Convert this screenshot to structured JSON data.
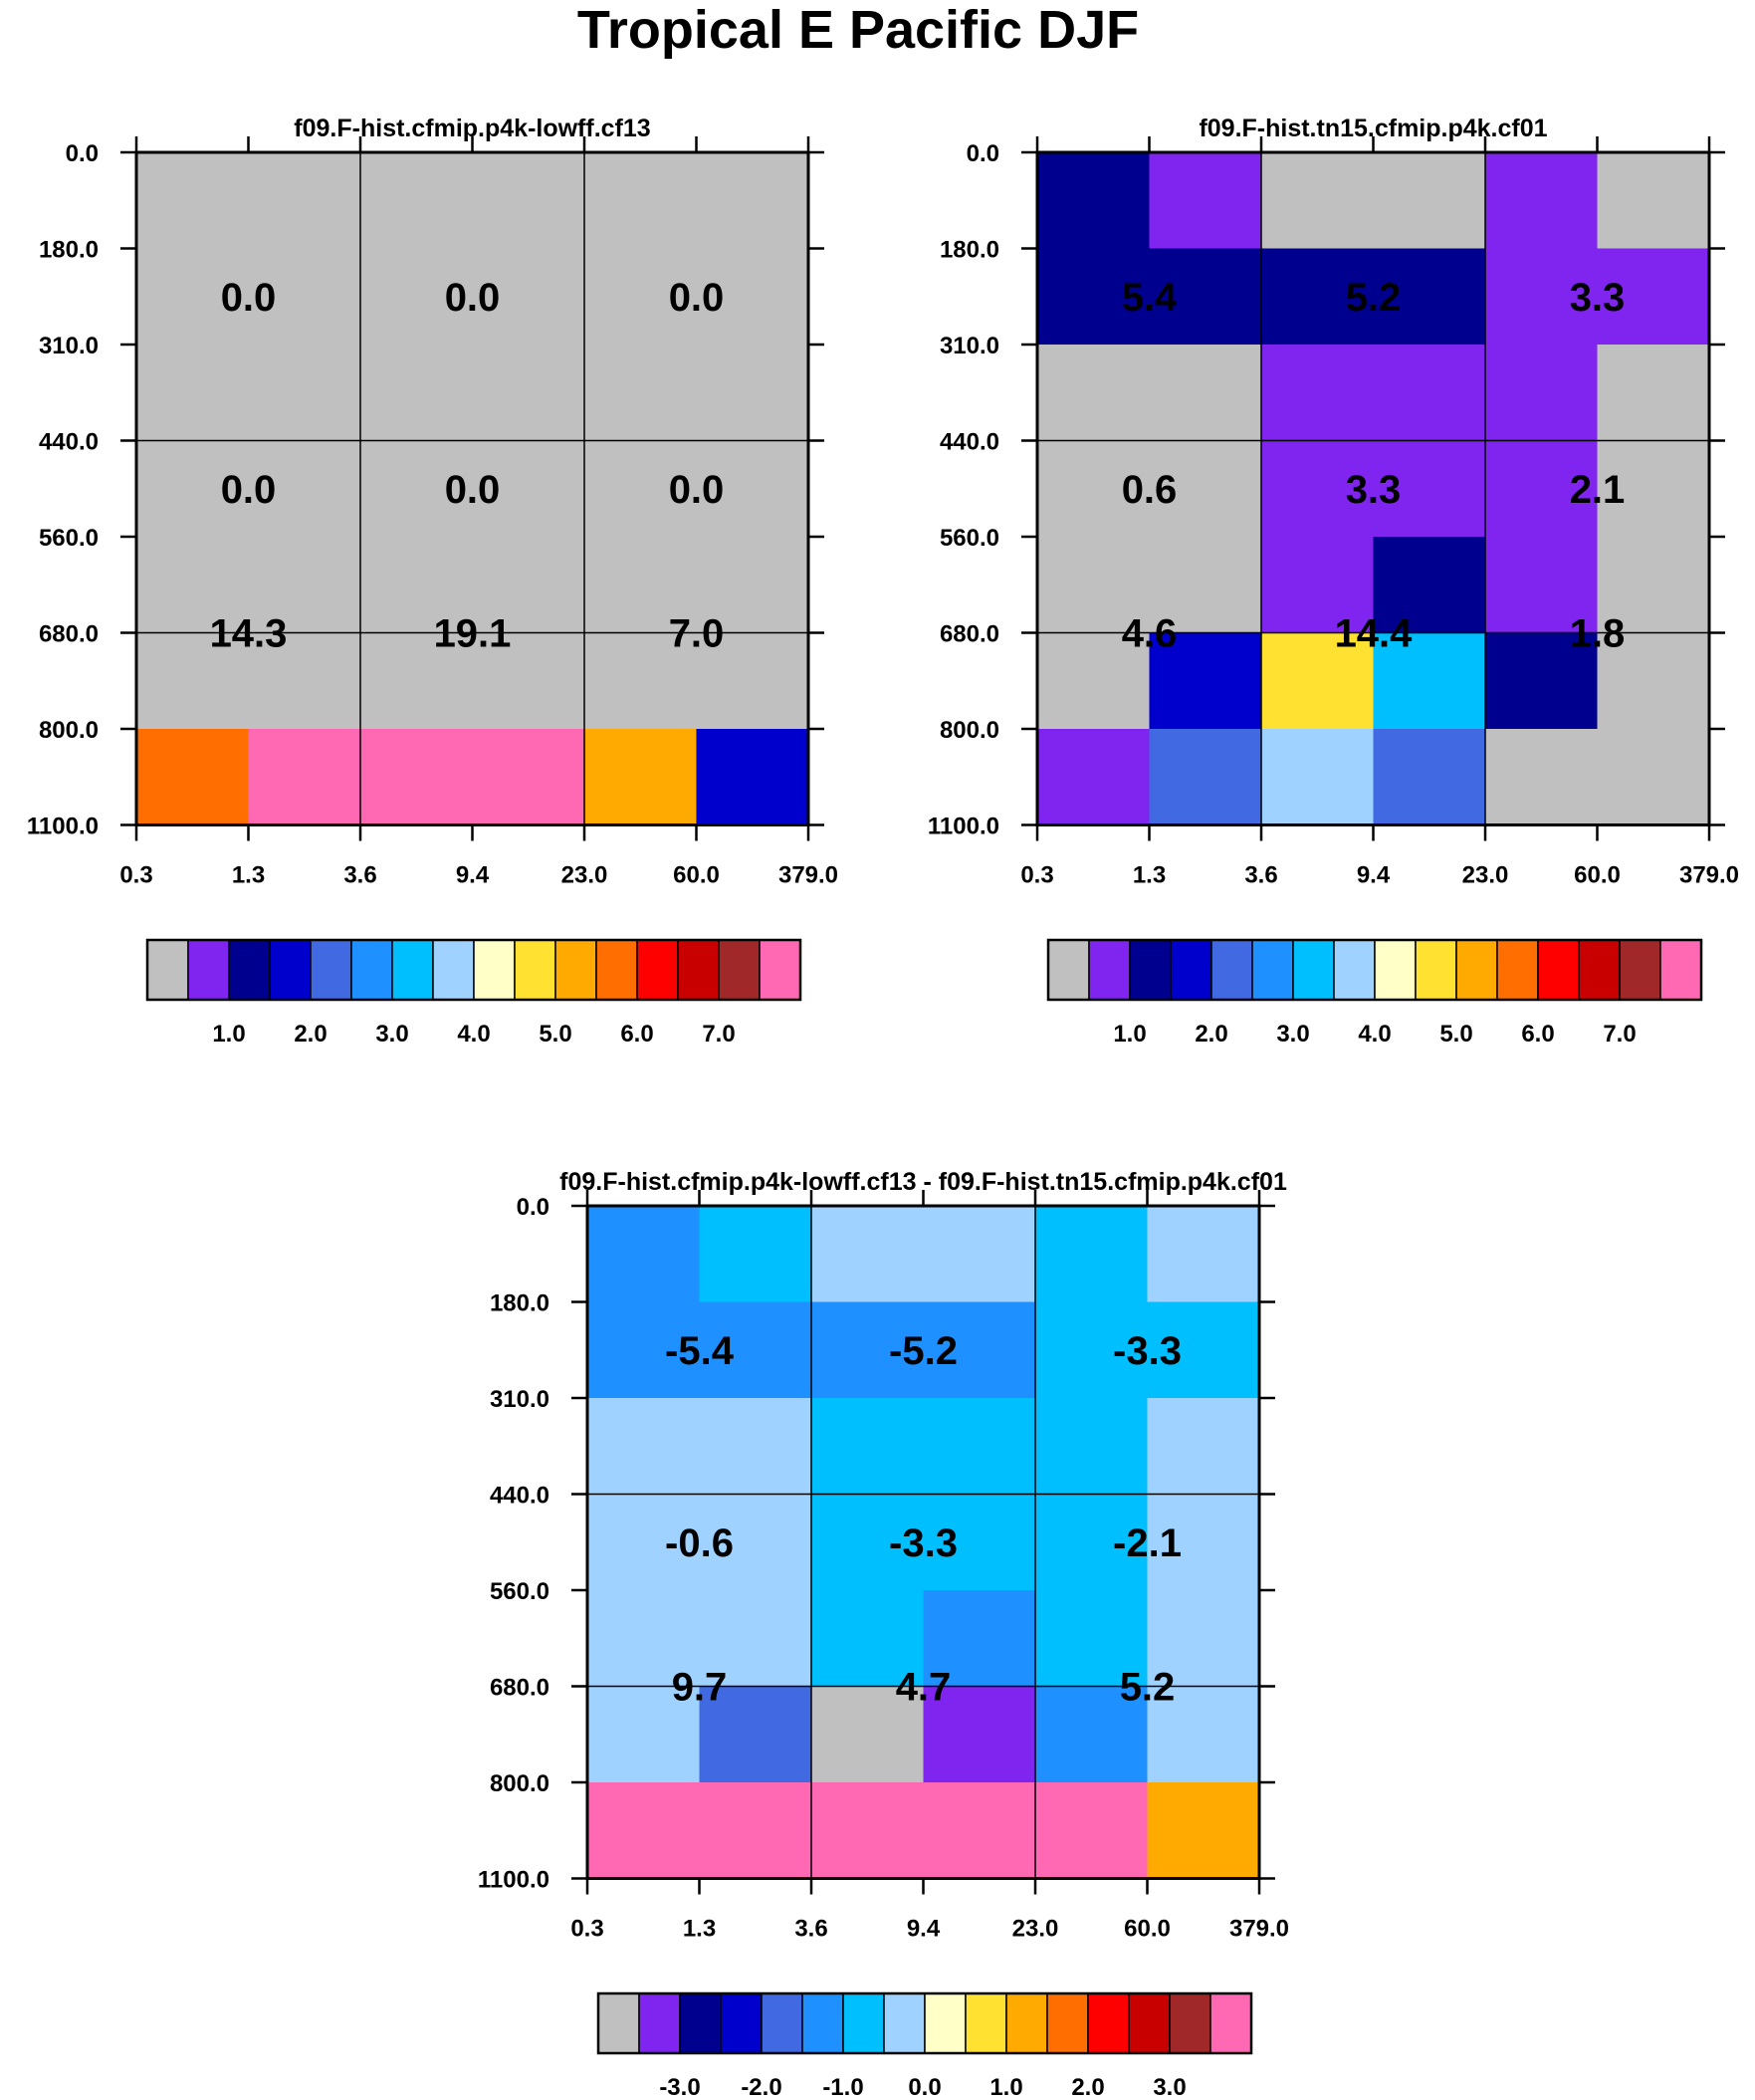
{
  "figure_title": "Tropical E Pacific DJF",
  "chart_data": [
    {
      "type": "heatmap",
      "title": "f09.F-hist.cfmip.p4k-lowff.cf13",
      "x_ticks": [
        "0.3",
        "1.3",
        "3.6",
        "9.4",
        "23.0",
        "60.0",
        "379.0"
      ],
      "y_ticks": [
        "0.0",
        "180.0",
        "310.0",
        "440.0",
        "560.0",
        "680.0",
        "800.0",
        "1100.0"
      ],
      "cells": [
        [
          0,
          0,
          0,
          0,
          0,
          0
        ],
        [
          0,
          0,
          0,
          0,
          0,
          0
        ],
        [
          0,
          0,
          0,
          0,
          0,
          0
        ],
        [
          0,
          0,
          0,
          0,
          0,
          0
        ],
        [
          0,
          0,
          0,
          0,
          0,
          0
        ],
        [
          0,
          0,
          0,
          0,
          0,
          0
        ],
        [
          11,
          15,
          15,
          15,
          10,
          3
        ]
      ],
      "group_labels": [
        [
          "0.0",
          "0.0",
          "0.0"
        ],
        [
          "0.0",
          "0.0",
          "0.0"
        ],
        [
          "14.3",
          "19.1",
          "7.0"
        ]
      ],
      "colorbar": {
        "colors": [
          "#c0c0c0",
          "#8024f0",
          "#00008e",
          "#0000cd",
          "#4169e1",
          "#1e90ff",
          "#00bfff",
          "#a0d2ff",
          "#ffffc8",
          "#ffe132",
          "#ffaa00",
          "#ff6e00",
          "#ff0000",
          "#c80000",
          "#a02828",
          "#ff69b4"
        ],
        "tick_labels": [
          "1.0",
          "2.0",
          "3.0",
          "4.0",
          "5.0",
          "6.0",
          "7.0"
        ]
      }
    },
    {
      "type": "heatmap",
      "title": "f09.F-hist.tn15.cfmip.p4k.cf01",
      "x_ticks": [
        "0.3",
        "1.3",
        "3.6",
        "9.4",
        "23.0",
        "60.0",
        "379.0"
      ],
      "y_ticks": [
        "0.0",
        "180.0",
        "310.0",
        "440.0",
        "560.0",
        "680.0",
        "800.0",
        "1100.0"
      ],
      "cells": [
        [
          2,
          1,
          0,
          0,
          1,
          0
        ],
        [
          2,
          2,
          2,
          2,
          1,
          1
        ],
        [
          0,
          0,
          1,
          1,
          1,
          0
        ],
        [
          0,
          0,
          1,
          1,
          1,
          0
        ],
        [
          0,
          0,
          1,
          2,
          1,
          0
        ],
        [
          0,
          3,
          9,
          6,
          2,
          0
        ],
        [
          1,
          4,
          7,
          4,
          0,
          0
        ]
      ],
      "group_labels": [
        [
          "5.4",
          "5.2",
          "3.3"
        ],
        [
          "0.6",
          "3.3",
          "2.1"
        ],
        [
          "4.6",
          "14.4",
          "1.8"
        ]
      ],
      "colorbar": {
        "colors": [
          "#c0c0c0",
          "#8024f0",
          "#00008e",
          "#0000cd",
          "#4169e1",
          "#1e90ff",
          "#00bfff",
          "#a0d2ff",
          "#ffffc8",
          "#ffe132",
          "#ffaa00",
          "#ff6e00",
          "#ff0000",
          "#c80000",
          "#a02828",
          "#ff69b4"
        ],
        "tick_labels": [
          "1.0",
          "2.0",
          "3.0",
          "4.0",
          "5.0",
          "6.0",
          "7.0"
        ]
      }
    },
    {
      "type": "heatmap",
      "title": "f09.F-hist.cfmip.p4k-lowff.cf13 - f09.F-hist.tn15.cfmip.p4k.cf01",
      "x_ticks": [
        "0.3",
        "1.3",
        "3.6",
        "9.4",
        "23.0",
        "60.0",
        "379.0"
      ],
      "y_ticks": [
        "0.0",
        "180.0",
        "310.0",
        "440.0",
        "560.0",
        "680.0",
        "800.0",
        "1100.0"
      ],
      "cells": [
        [
          5,
          6,
          7,
          7,
          6,
          7
        ],
        [
          5,
          5,
          5,
          5,
          6,
          6
        ],
        [
          7,
          7,
          6,
          6,
          6,
          7
        ],
        [
          7,
          7,
          6,
          6,
          6,
          7
        ],
        [
          7,
          7,
          6,
          5,
          6,
          7
        ],
        [
          7,
          4,
          0,
          1,
          5,
          7
        ],
        [
          15,
          15,
          15,
          15,
          15,
          10
        ]
      ],
      "group_labels": [
        [
          "-5.4",
          "-5.2",
          "-3.3"
        ],
        [
          "-0.6",
          "-3.3",
          "-2.1"
        ],
        [
          "9.7",
          "4.7",
          "5.2"
        ]
      ],
      "colorbar": {
        "colors": [
          "#c0c0c0",
          "#8024f0",
          "#00008e",
          "#0000cd",
          "#4169e1",
          "#1e90ff",
          "#00bfff",
          "#a0d2ff",
          "#ffffc8",
          "#ffe132",
          "#ffaa00",
          "#ff6e00",
          "#ff0000",
          "#c80000",
          "#a02828",
          "#ff69b4"
        ],
        "tick_labels": [
          "-3.0",
          "-2.0",
          "-1.0",
          "0.0",
          "1.0",
          "2.0",
          "3.0"
        ]
      }
    }
  ]
}
